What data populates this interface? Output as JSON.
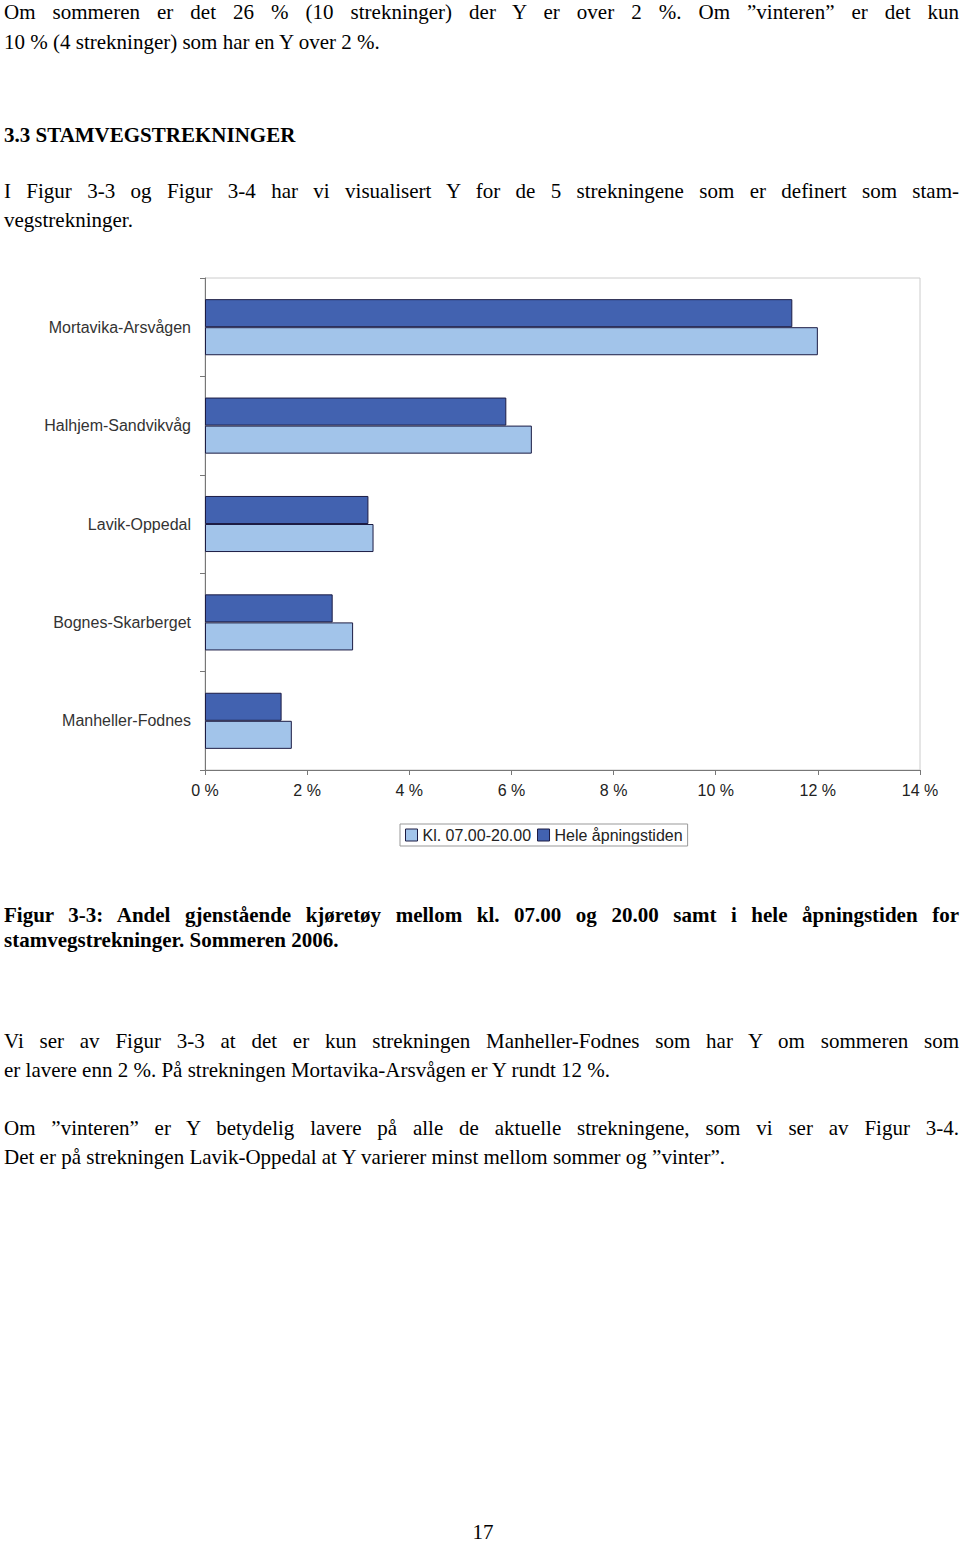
{
  "page": {
    "intro": [
      "Om sommeren er det 26 % (10 strekninger) der Y er over 2 %. Om ”vinteren” er det kun",
      "10 % (4 strekninger) som har en Y over 2 %."
    ],
    "heading": "3.3 STAMVEGSTREKNINGER",
    "paragraph": [
      "I Figur 3-3 og Figur 3-4 har vi visualisert Y for de 5 strekningene som er definert som stam-",
      "vegstrekninger."
    ],
    "caption": [
      "Figur 3-3: Andel gjenstående kjøretøy mellom kl. 07.00 og 20.00 samt i hele åpningstiden for",
      "stamvegstrekninger. Sommeren 2006."
    ],
    "body": [
      [
        "Vi ser av Figur 3-3 at det er kun strekningen Manheller-Fodnes som har Y om sommeren som",
        "er lavere enn 2 %. På strekningen Mortavika-Arsvågen er Y rundt 12 %."
      ],
      [
        "Om ”vinteren” er Y betydelig lavere på alle de aktuelle strekningene, som vi ser av Figur 3-4.",
        "Det er på strekningen Lavik-Oppedal at Y varierer minst mellom sommer og ”vinter”."
      ]
    ],
    "page_number": "17"
  },
  "chart_data": {
    "type": "bar",
    "orientation": "horizontal",
    "categories": [
      "Mortavika-Arsvågen",
      "Halhjem-Sandvikvåg",
      "Lavik-Oppedal",
      "Bognes-Skarberget",
      "Manheller-Fodnes"
    ],
    "series": [
      {
        "name": "Hele åpningstiden",
        "color": "#4262b0",
        "values": [
          11.5,
          5.9,
          3.2,
          2.5,
          1.5
        ]
      },
      {
        "name": "Kl. 07.00-20.00",
        "color": "#a2c4ea",
        "values": [
          12.0,
          6.4,
          3.3,
          2.9,
          1.7
        ]
      }
    ],
    "xlim": [
      0,
      14
    ],
    "xticks": [
      {
        "value": 0,
        "label": "0 %"
      },
      {
        "value": 2,
        "label": "2 %"
      },
      {
        "value": 4,
        "label": "4 %"
      },
      {
        "value": 6,
        "label": "6 %"
      },
      {
        "value": 8,
        "label": "8 %"
      },
      {
        "value": 10,
        "label": "10 %"
      },
      {
        "value": 12,
        "label": "12 %"
      },
      {
        "value": 14,
        "label": "14 %"
      }
    ],
    "grid": false,
    "legend": "bottom"
  }
}
